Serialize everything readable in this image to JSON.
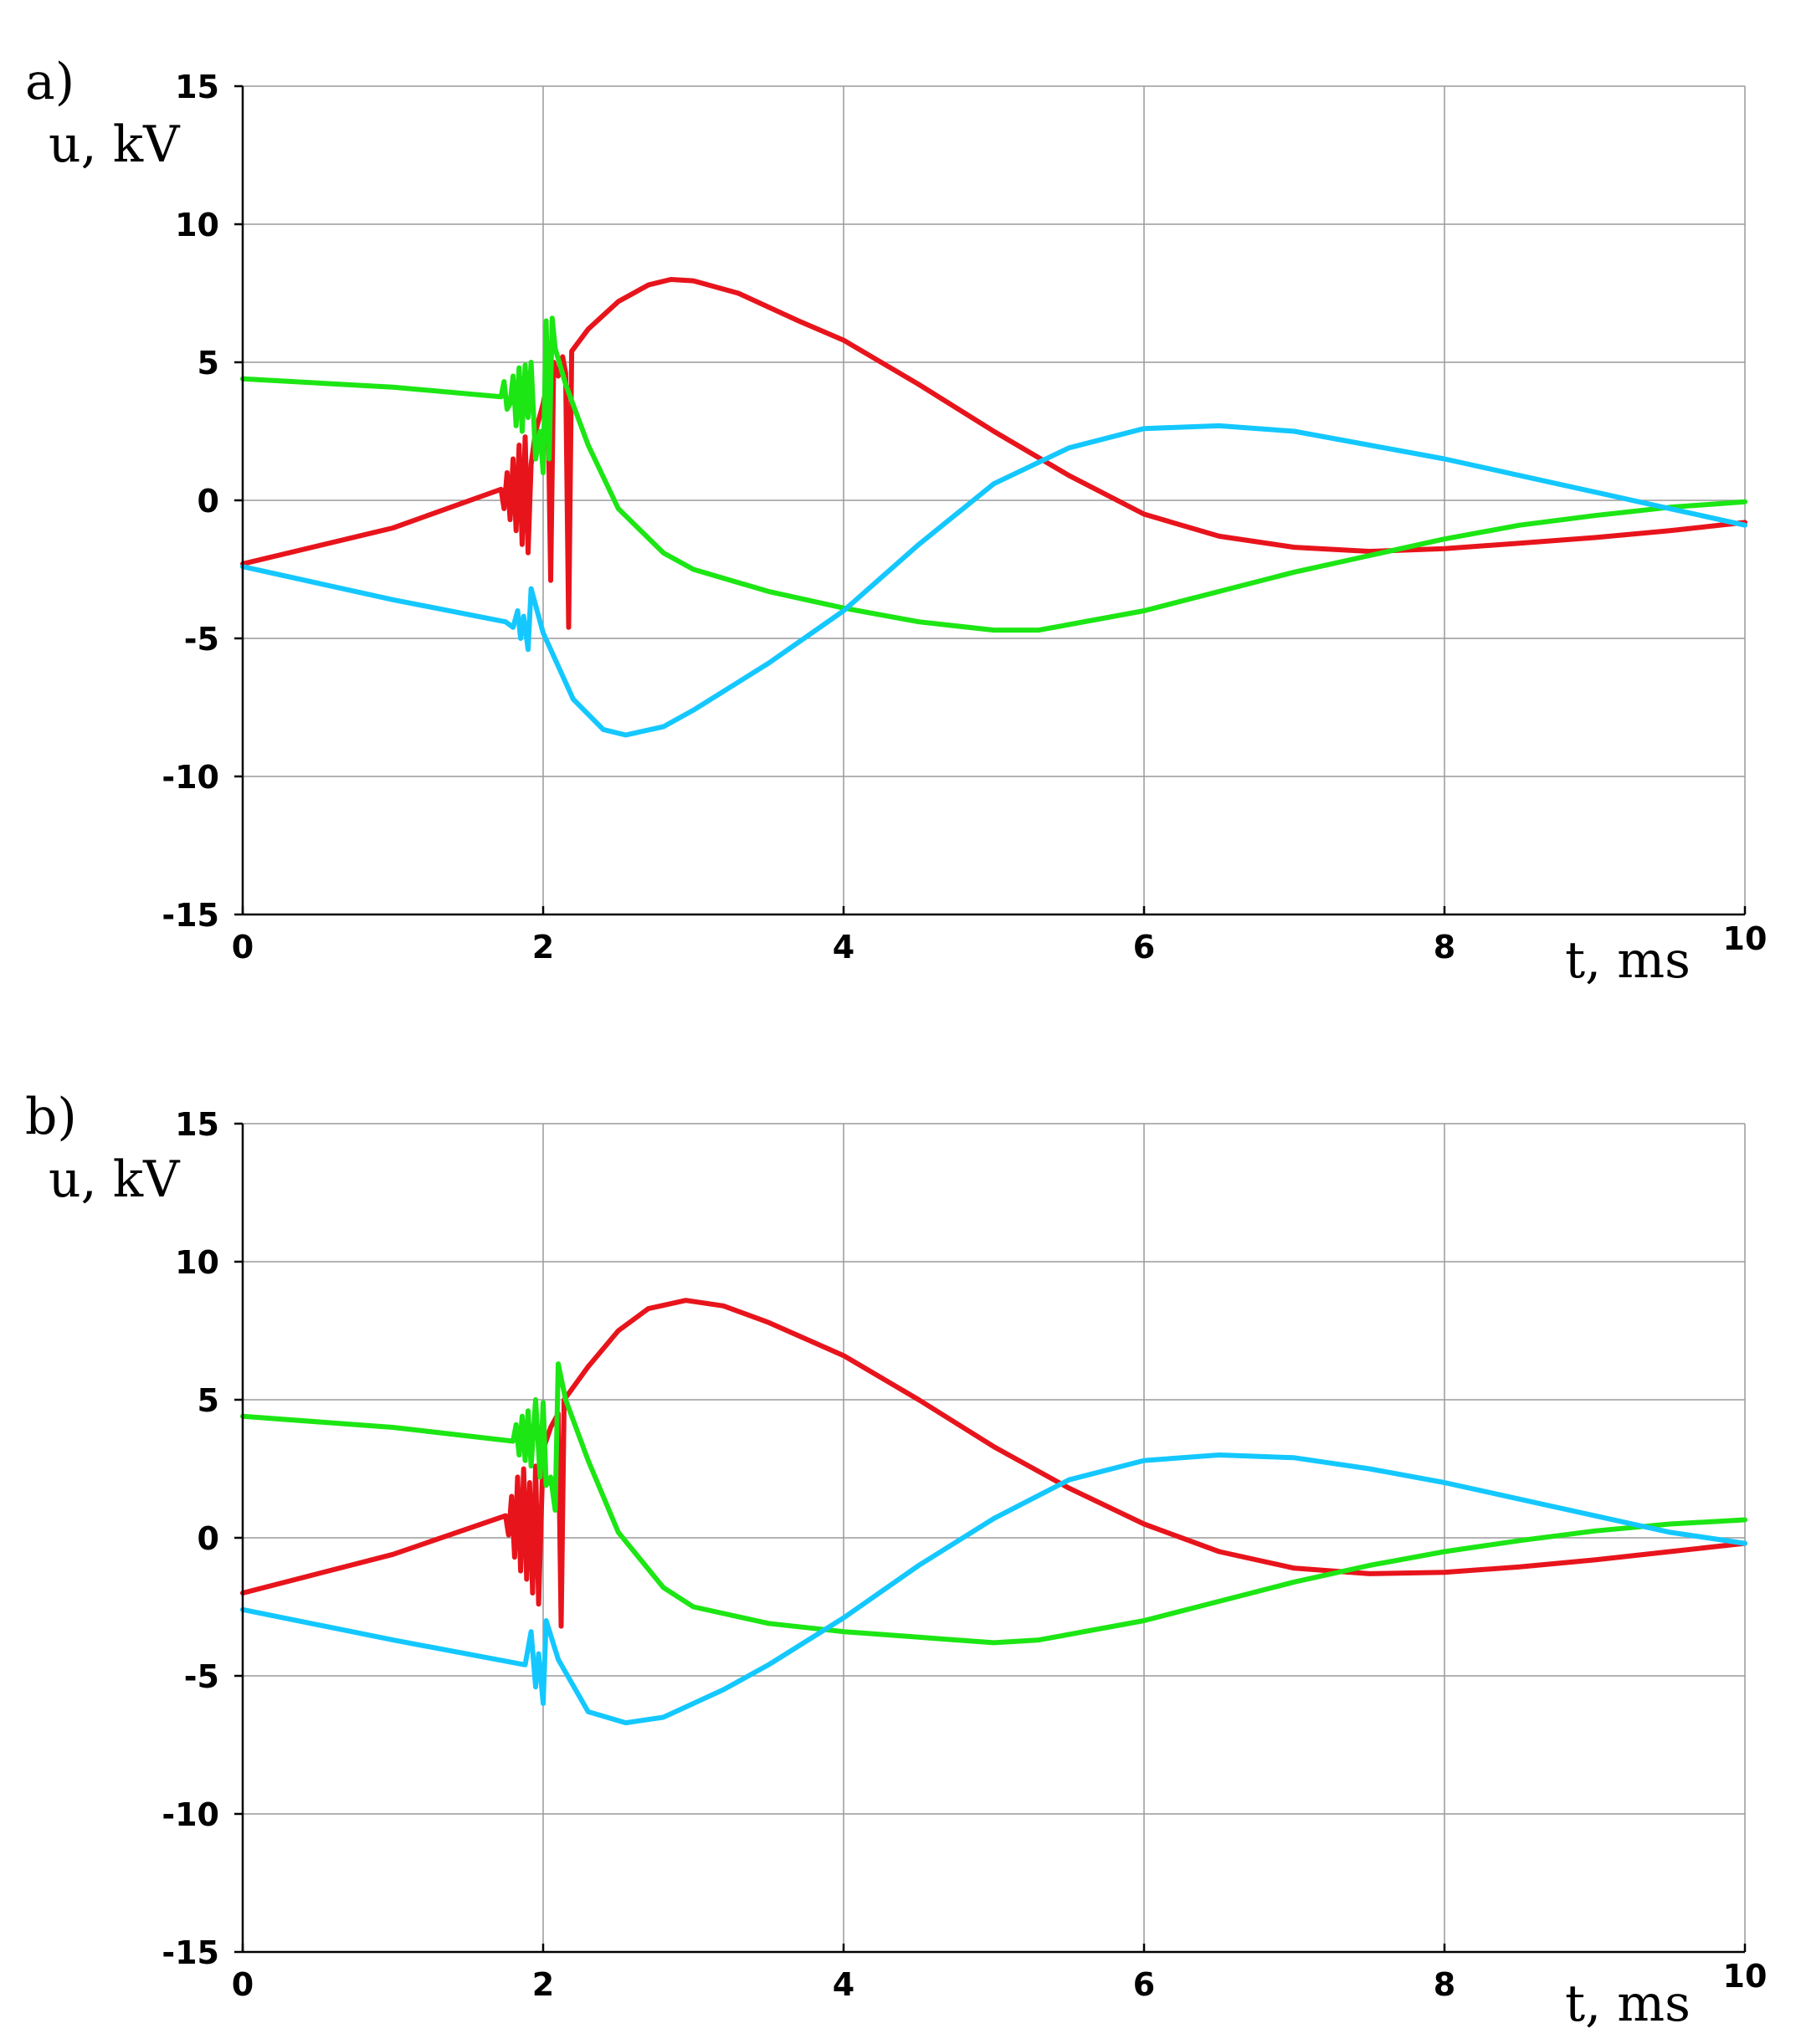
{
  "chart_data": [
    {
      "type": "line",
      "panel_label": "a)",
      "ylabel": "u, kV",
      "xlabel": "t, ms",
      "xlim": [
        0,
        10
      ],
      "ylim": [
        -15,
        15
      ],
      "xticks": [
        "0",
        "2",
        "4",
        "6",
        "8",
        "10"
      ],
      "yticks": [
        "15",
        "10",
        "5",
        "0",
        "-5",
        "-10",
        "-15"
      ],
      "grid": true,
      "series": [
        {
          "name": "red",
          "color": "#e8141c",
          "points": [
            [
              0,
              -2.3
            ],
            [
              1,
              -1
            ],
            [
              1.72,
              0.4
            ],
            [
              1.74,
              -0.3
            ],
            [
              1.76,
              1
            ],
            [
              1.78,
              -0.7
            ],
            [
              1.8,
              1.5
            ],
            [
              1.82,
              -1.1
            ],
            [
              1.84,
              2.0
            ],
            [
              1.86,
              -1.6
            ],
            [
              1.88,
              2.3
            ],
            [
              1.9,
              -1.9
            ],
            [
              1.92,
              1.3
            ],
            [
              1.95,
              2.5
            ],
            [
              2.0,
              3.5
            ],
            [
              2.03,
              4.3
            ],
            [
              2.05,
              -2.9
            ],
            [
              2.07,
              5.0
            ],
            [
              2.1,
              4.5
            ],
            [
              2.13,
              5.2
            ],
            [
              2.15,
              4.6
            ],
            [
              2.17,
              -4.6
            ],
            [
              2.19,
              5.4
            ],
            [
              2.3,
              6.2
            ],
            [
              2.5,
              7.2
            ],
            [
              2.7,
              7.8
            ],
            [
              2.85,
              8.0
            ],
            [
              3,
              7.95
            ],
            [
              3.3,
              7.5
            ],
            [
              3.7,
              6.5
            ],
            [
              4,
              5.8
            ],
            [
              4.5,
              4.2
            ],
            [
              5,
              2.5
            ],
            [
              5.5,
              0.9
            ],
            [
              6,
              -0.5
            ],
            [
              6.5,
              -1.3
            ],
            [
              7,
              -1.7
            ],
            [
              7.5,
              -1.85
            ],
            [
              8,
              -1.75
            ],
            [
              8.5,
              -1.55
            ],
            [
              9,
              -1.35
            ],
            [
              9.5,
              -1.1
            ],
            [
              10,
              -0.8
            ]
          ]
        },
        {
          "name": "green",
          "color": "#1ce614",
          "points": [
            [
              0,
              4.4
            ],
            [
              1,
              4.1
            ],
            [
              1.72,
              3.75
            ],
            [
              1.74,
              4.3
            ],
            [
              1.76,
              3.3
            ],
            [
              1.78,
              3.5
            ],
            [
              1.8,
              4.5
            ],
            [
              1.82,
              2.7
            ],
            [
              1.84,
              4.8
            ],
            [
              1.86,
              2.5
            ],
            [
              1.88,
              4.9
            ],
            [
              1.9,
              3.0
            ],
            [
              1.92,
              5.0
            ],
            [
              1.95,
              1.5
            ],
            [
              1.98,
              2.5
            ],
            [
              2.0,
              1.0
            ],
            [
              2.02,
              6.5
            ],
            [
              2.04,
              1.5
            ],
            [
              2.06,
              6.6
            ],
            [
              2.08,
              5.5
            ],
            [
              2.15,
              4.2
            ],
            [
              2.3,
              2.0
            ],
            [
              2.5,
              -0.3
            ],
            [
              2.8,
              -1.9
            ],
            [
              3,
              -2.5
            ],
            [
              3.5,
              -3.3
            ],
            [
              4,
              -3.9
            ],
            [
              4.5,
              -4.4
            ],
            [
              5,
              -4.7
            ],
            [
              5.3,
              -4.7
            ],
            [
              6,
              -4.0
            ],
            [
              6.5,
              -3.3
            ],
            [
              7,
              -2.6
            ],
            [
              7.5,
              -2.0
            ],
            [
              8,
              -1.4
            ],
            [
              8.5,
              -0.9
            ],
            [
              9,
              -0.55
            ],
            [
              9.5,
              -0.25
            ],
            [
              10,
              -0.05
            ]
          ]
        },
        {
          "name": "cyan",
          "color": "#14c8ff",
          "points": [
            [
              0,
              -2.4
            ],
            [
              1,
              -3.6
            ],
            [
              1.75,
              -4.4
            ],
            [
              1.8,
              -4.6
            ],
            [
              1.83,
              -4.0
            ],
            [
              1.85,
              -5.0
            ],
            [
              1.87,
              -4.2
            ],
            [
              1.9,
              -5.4
            ],
            [
              1.92,
              -3.2
            ],
            [
              2.0,
              -4.8
            ],
            [
              2.2,
              -7.2
            ],
            [
              2.4,
              -8.3
            ],
            [
              2.55,
              -8.5
            ],
            [
              2.8,
              -8.2
            ],
            [
              3,
              -7.6
            ],
            [
              3.5,
              -5.9
            ],
            [
              4,
              -4.0
            ],
            [
              4.5,
              -1.6
            ],
            [
              5,
              0.6
            ],
            [
              5.5,
              1.9
            ],
            [
              6,
              2.6
            ],
            [
              6.5,
              2.7
            ],
            [
              7,
              2.5
            ],
            [
              7.5,
              2.0
            ],
            [
              8,
              1.5
            ],
            [
              8.5,
              0.9
            ],
            [
              9,
              0.3
            ],
            [
              9.5,
              -0.3
            ],
            [
              10,
              -0.9
            ]
          ]
        }
      ]
    },
    {
      "type": "line",
      "panel_label": "b)",
      "ylabel": "u, kV",
      "xlabel": "t, ms",
      "xlim": [
        0,
        10
      ],
      "ylim": [
        -15,
        15
      ],
      "xticks": [
        "0",
        "2",
        "4",
        "6",
        "8",
        "10"
      ],
      "yticks": [
        "15",
        "10",
        "5",
        "0",
        "-5",
        "-10",
        "-15"
      ],
      "grid": true,
      "series": [
        {
          "name": "red",
          "color": "#e8141c",
          "points": [
            [
              0,
              -2.0
            ],
            [
              1,
              -0.6
            ],
            [
              1.75,
              0.8
            ],
            [
              1.77,
              0.1
            ],
            [
              1.79,
              1.5
            ],
            [
              1.81,
              -0.7
            ],
            [
              1.83,
              2.2
            ],
            [
              1.85,
              -1.2
            ],
            [
              1.87,
              2.5
            ],
            [
              1.89,
              -1.5
            ],
            [
              1.91,
              2.0
            ],
            [
              1.93,
              -2.0
            ],
            [
              1.95,
              2.6
            ],
            [
              1.97,
              -2.4
            ],
            [
              2.0,
              3.2
            ],
            [
              2.05,
              4.0
            ],
            [
              2.1,
              4.5
            ],
            [
              2.12,
              -3.2
            ],
            [
              2.14,
              5.0
            ],
            [
              2.3,
              6.2
            ],
            [
              2.5,
              7.5
            ],
            [
              2.7,
              8.3
            ],
            [
              2.95,
              8.6
            ],
            [
              3.2,
              8.4
            ],
            [
              3.5,
              7.8
            ],
            [
              4,
              6.6
            ],
            [
              4.5,
              5.0
            ],
            [
              5,
              3.3
            ],
            [
              5.5,
              1.8
            ],
            [
              6,
              0.5
            ],
            [
              6.5,
              -0.5
            ],
            [
              7,
              -1.1
            ],
            [
              7.5,
              -1.3
            ],
            [
              8,
              -1.25
            ],
            [
              8.5,
              -1.05
            ],
            [
              9,
              -0.8
            ],
            [
              9.5,
              -0.5
            ],
            [
              10,
              -0.2
            ]
          ]
        },
        {
          "name": "green",
          "color": "#1ce614",
          "points": [
            [
              0,
              4.4
            ],
            [
              1,
              4.0
            ],
            [
              1.8,
              3.5
            ],
            [
              1.82,
              4.1
            ],
            [
              1.84,
              3.0
            ],
            [
              1.86,
              4.4
            ],
            [
              1.88,
              2.8
            ],
            [
              1.9,
              4.6
            ],
            [
              1.92,
              2.6
            ],
            [
              1.95,
              5.0
            ],
            [
              1.98,
              2.2
            ],
            [
              2.0,
              4.9
            ],
            [
              2.02,
              1.9
            ],
            [
              2.05,
              2.2
            ],
            [
              2.08,
              1.0
            ],
            [
              2.1,
              6.3
            ],
            [
              2.15,
              5.0
            ],
            [
              2.3,
              2.8
            ],
            [
              2.5,
              0.2
            ],
            [
              2.8,
              -1.8
            ],
            [
              3,
              -2.5
            ],
            [
              3.5,
              -3.1
            ],
            [
              4,
              -3.4
            ],
            [
              4.5,
              -3.6
            ],
            [
              5,
              -3.8
            ],
            [
              5.3,
              -3.7
            ],
            [
              6,
              -3.0
            ],
            [
              6.5,
              -2.3
            ],
            [
              7,
              -1.6
            ],
            [
              7.5,
              -1.0
            ],
            [
              8,
              -0.5
            ],
            [
              8.5,
              -0.1
            ],
            [
              9,
              0.25
            ],
            [
              9.5,
              0.5
            ],
            [
              10,
              0.65
            ]
          ]
        },
        {
          "name": "cyan",
          "color": "#14c8ff",
          "points": [
            [
              0,
              -2.6
            ],
            [
              1,
              -3.7
            ],
            [
              1.88,
              -4.6
            ],
            [
              1.92,
              -3.4
            ],
            [
              1.95,
              -5.4
            ],
            [
              1.97,
              -4.2
            ],
            [
              2.0,
              -6.0
            ],
            [
              2.02,
              -3.0
            ],
            [
              2.1,
              -4.4
            ],
            [
              2.3,
              -6.3
            ],
            [
              2.55,
              -6.7
            ],
            [
              2.8,
              -6.5
            ],
            [
              3.2,
              -5.5
            ],
            [
              3.5,
              -4.6
            ],
            [
              4,
              -2.9
            ],
            [
              4.5,
              -1.0
            ],
            [
              5,
              0.7
            ],
            [
              5.5,
              2.1
            ],
            [
              6,
              2.8
            ],
            [
              6.5,
              3.0
            ],
            [
              7,
              2.9
            ],
            [
              7.5,
              2.5
            ],
            [
              8,
              2.0
            ],
            [
              8.5,
              1.4
            ],
            [
              9,
              0.8
            ],
            [
              9.5,
              0.2
            ],
            [
              10,
              -0.2
            ]
          ]
        }
      ]
    }
  ]
}
